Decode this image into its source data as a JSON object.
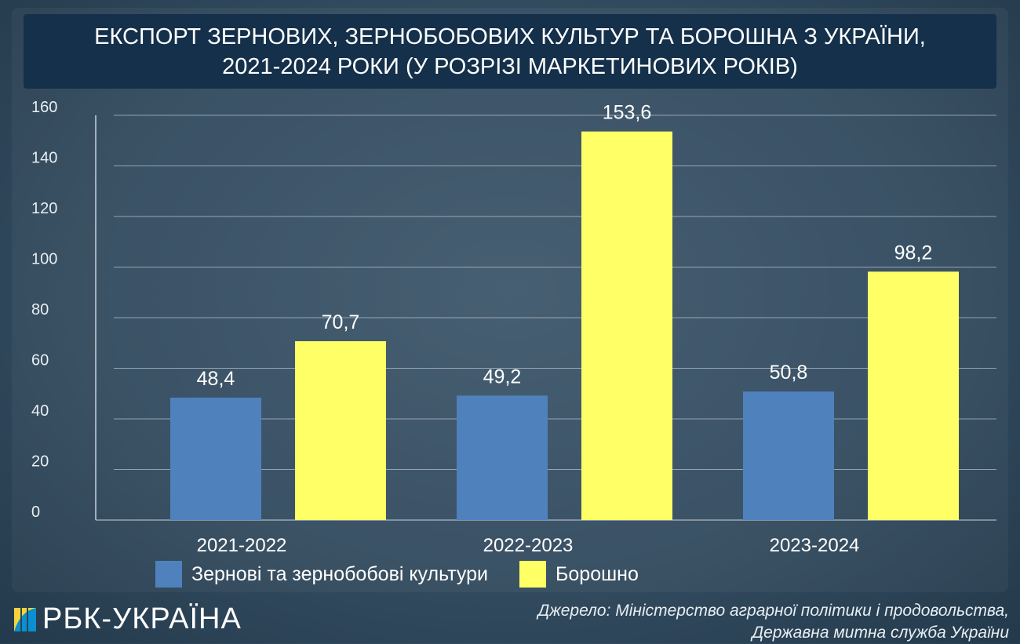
{
  "title": {
    "line1": "ЕКСПОРТ ЗЕРНОВИХ, ЗЕРНОБОБОВИХ КУЛЬТУР ТА БОРОШНА З УКРАЇНИ,",
    "line2": "2021-2024 РОКИ (У РОЗРІЗІ МАРКЕТИНОВИХ РОКІВ)"
  },
  "chart_data": {
    "type": "bar",
    "title": "ЕКСПОРТ ЗЕРНОВИХ, ЗЕРНОБОБОВИХ КУЛЬТУР ТА БОРОШНА З УКРАЇНИ, 2021-2024 РОКИ (У РОЗРІЗІ МАРКЕТИНОВИХ РОКІВ)",
    "categories": [
      "2021-2022",
      "2022-2023",
      "2023-2024"
    ],
    "series": [
      {
        "name": "Зернові та зернобобові культури",
        "values": [
          48.4,
          49.2,
          50.8
        ],
        "labels": [
          "48,4",
          "49,2",
          "50,8"
        ],
        "color": "#4f81bd"
      },
      {
        "name": "Борошно",
        "values": [
          70.7,
          153.6,
          98.2
        ],
        "labels": [
          "70,7",
          "153,6",
          "98,2"
        ],
        "color": "#ffff66"
      }
    ],
    "ylim": [
      0,
      160
    ],
    "yticks": [
      0,
      20,
      40,
      60,
      80,
      100,
      120,
      140,
      160
    ],
    "grid": true,
    "legend": "bottom"
  },
  "logo": {
    "text": "РБК-УКРАЇНА"
  },
  "source": {
    "line1": "Джерело: Міністерство аграрної політики і продовольства,",
    "line2": "Державна митна служба України"
  }
}
